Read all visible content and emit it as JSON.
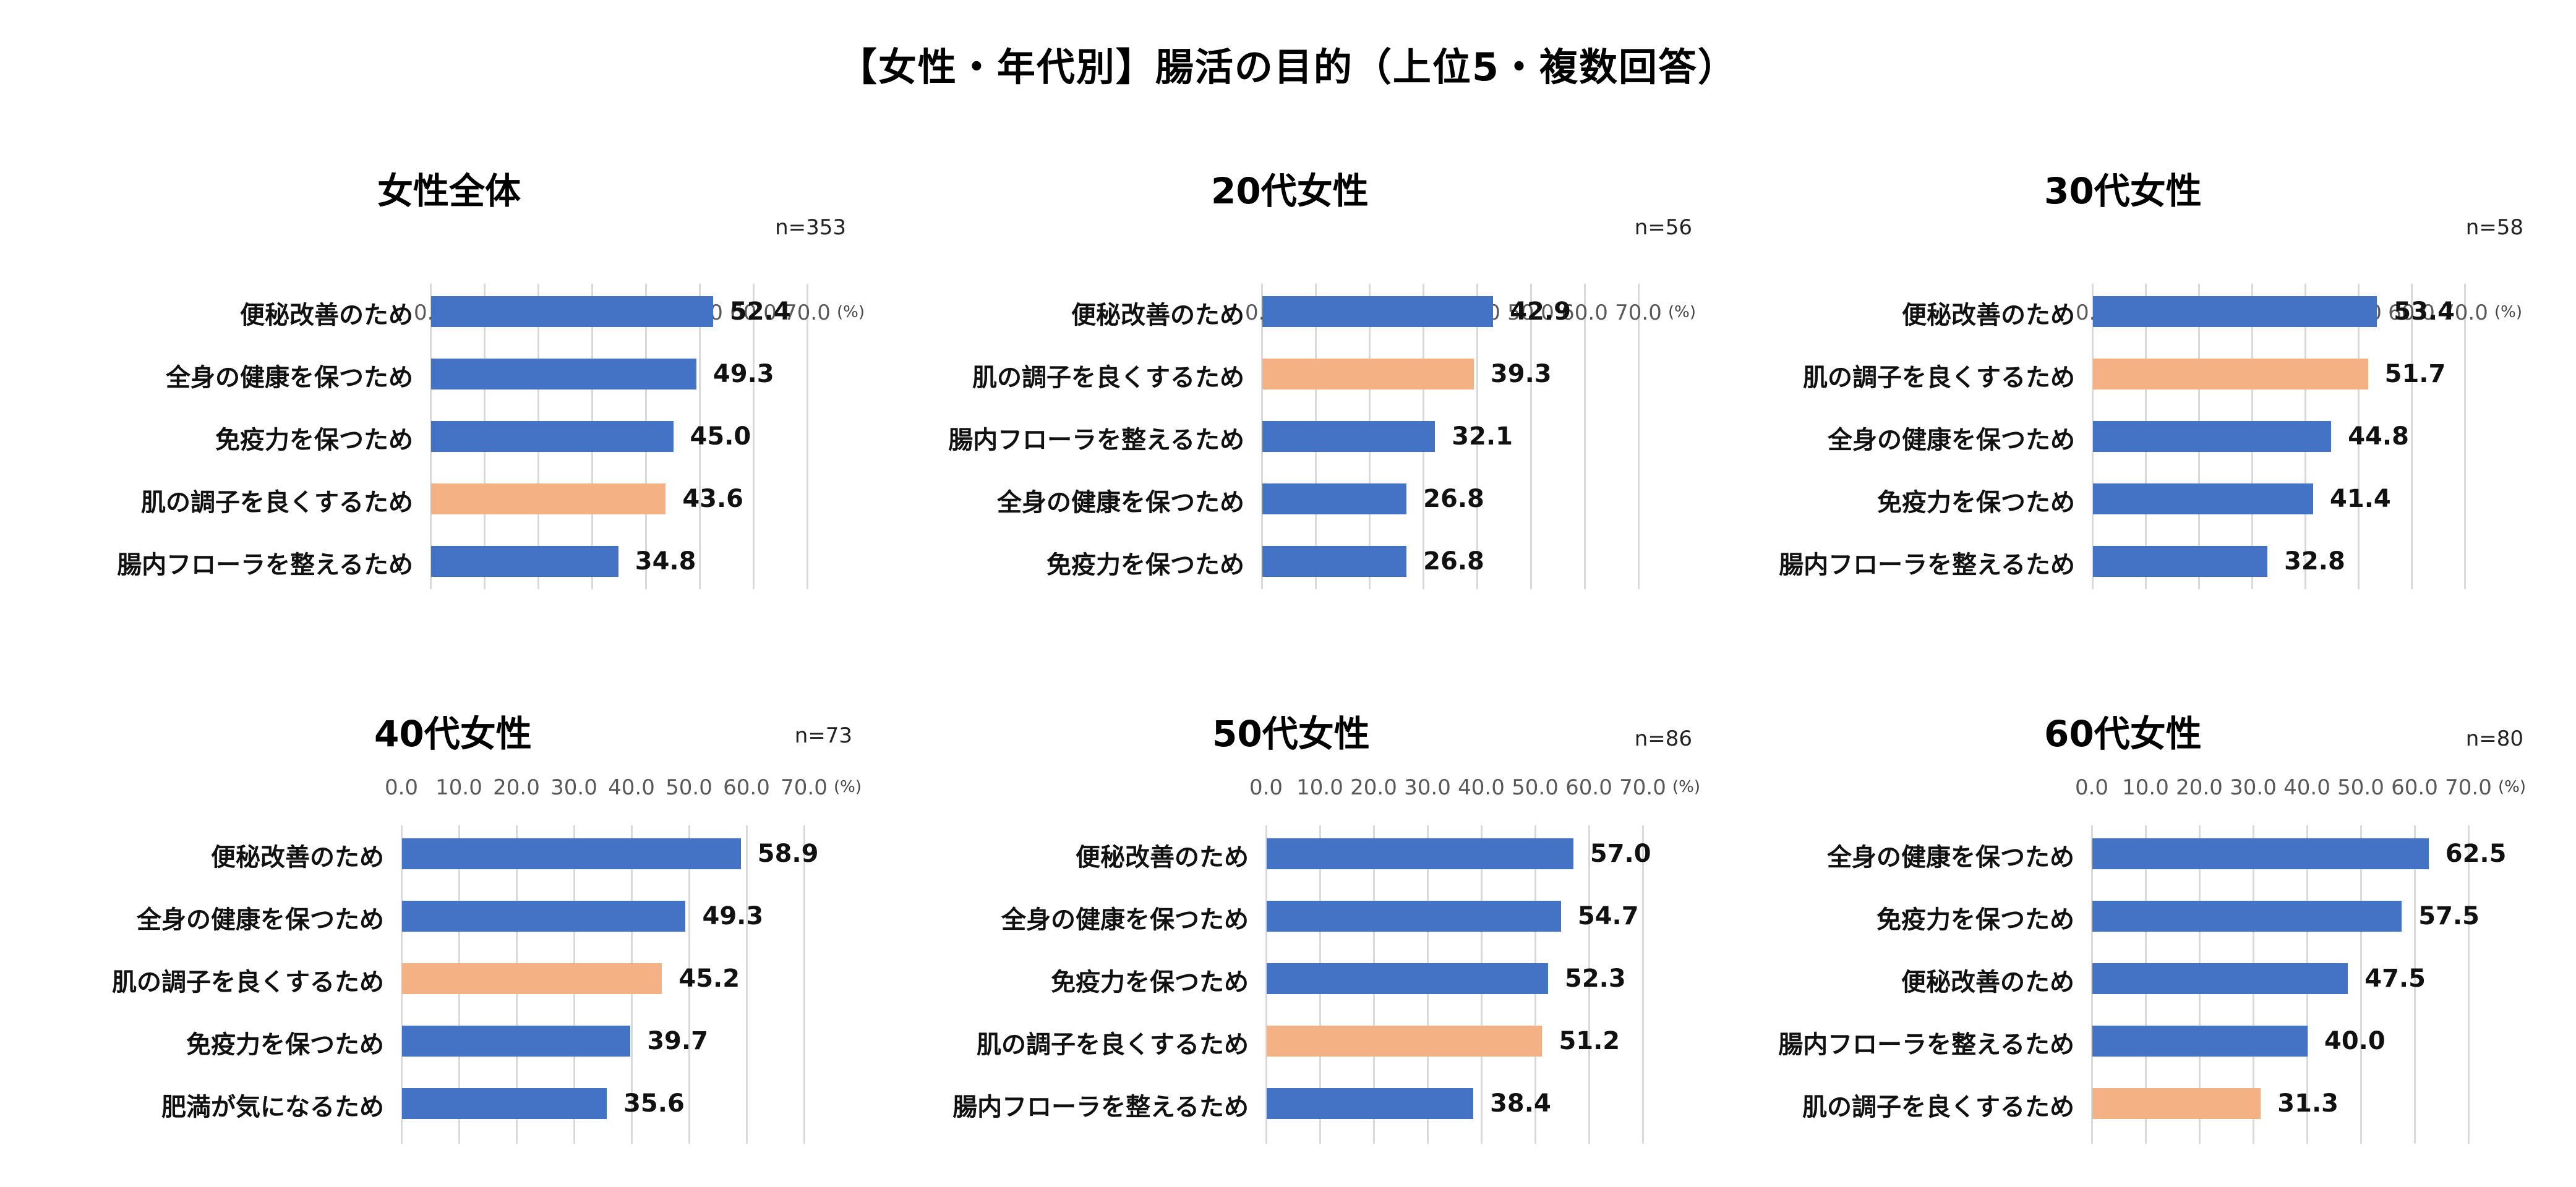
{
  "title": "【女性・年代別】腸活の目的（上位5・複数回答）",
  "colors": {
    "default_bar": "#4472C4",
    "highlight_bar": "#F4B183",
    "grid": "#D9D9D9",
    "tick_text": "#595959"
  },
  "axis": {
    "ticks": [
      "0.0",
      "10.0",
      "20.0",
      "30.0",
      "40.0",
      "50.0",
      "60.0",
      "70.0"
    ],
    "unit": "(%)"
  },
  "chart_data": [
    {
      "type": "bar",
      "orientation": "horizontal",
      "title": "女性全体",
      "n_label": "n=353",
      "categories": [
        "便秘改善のため",
        "全身の健康を保つため",
        "免疫力を保つため",
        "肌の調子を良くするため",
        "腸内フローラを整えるため"
      ],
      "values": [
        52.4,
        49.3,
        45.0,
        43.6,
        34.8
      ],
      "highlight": [
        false,
        false,
        false,
        true,
        false
      ],
      "xlabel": "(%)",
      "xlim": [
        0,
        70
      ],
      "grid": true
    },
    {
      "type": "bar",
      "orientation": "horizontal",
      "title": "20代女性",
      "n_label": "n=56",
      "categories": [
        "便秘改善のため",
        "肌の調子を良くするため",
        "腸内フローラを整えるため",
        "全身の健康を保つため",
        "免疫力を保つため"
      ],
      "values": [
        42.9,
        39.3,
        32.1,
        26.8,
        26.8
      ],
      "highlight": [
        false,
        true,
        false,
        false,
        false
      ],
      "xlabel": "(%)",
      "xlim": [
        0,
        70
      ],
      "grid": true
    },
    {
      "type": "bar",
      "orientation": "horizontal",
      "title": "30代女性",
      "n_label": "n=58",
      "categories": [
        "便秘改善のため",
        "肌の調子を良くするため",
        "全身の健康を保つため",
        "免疫力を保つため",
        "腸内フローラを整えるため"
      ],
      "values": [
        53.4,
        51.7,
        44.8,
        41.4,
        32.8
      ],
      "highlight": [
        false,
        true,
        false,
        false,
        false
      ],
      "xlabel": "(%)",
      "xlim": [
        0,
        70
      ],
      "grid": true
    },
    {
      "type": "bar",
      "orientation": "horizontal",
      "title": "40代女性",
      "n_label": "n=73",
      "categories": [
        "便秘改善のため",
        "全身の健康を保つため",
        "肌の調子を良くするため",
        "免疫力を保つため",
        "肥満が気になるため"
      ],
      "values": [
        58.9,
        49.3,
        45.2,
        39.7,
        35.6
      ],
      "highlight": [
        false,
        false,
        true,
        false,
        false
      ],
      "xlabel": "(%)",
      "xlim": [
        0,
        70
      ],
      "grid": true
    },
    {
      "type": "bar",
      "orientation": "horizontal",
      "title": "50代女性",
      "n_label": "n=86",
      "categories": [
        "便秘改善のため",
        "全身の健康を保つため",
        "免疫力を保つため",
        "肌の調子を良くするため",
        "腸内フローラを整えるため"
      ],
      "values": [
        57.0,
        54.7,
        52.3,
        51.2,
        38.4
      ],
      "highlight": [
        false,
        false,
        false,
        true,
        false
      ],
      "xlabel": "(%)",
      "xlim": [
        0,
        70
      ],
      "grid": true
    },
    {
      "type": "bar",
      "orientation": "horizontal",
      "title": "60代女性",
      "n_label": "n=80",
      "categories": [
        "全身の健康を保つため",
        "免疫力を保つため",
        "便秘改善のため",
        "腸内フローラを整えるため",
        "肌の調子を良くするため"
      ],
      "values": [
        62.5,
        57.5,
        47.5,
        40.0,
        31.3
      ],
      "highlight": [
        false,
        false,
        false,
        false,
        true
      ],
      "xlabel": "(%)",
      "xlim": [
        0,
        70
      ],
      "grid": true
    }
  ]
}
